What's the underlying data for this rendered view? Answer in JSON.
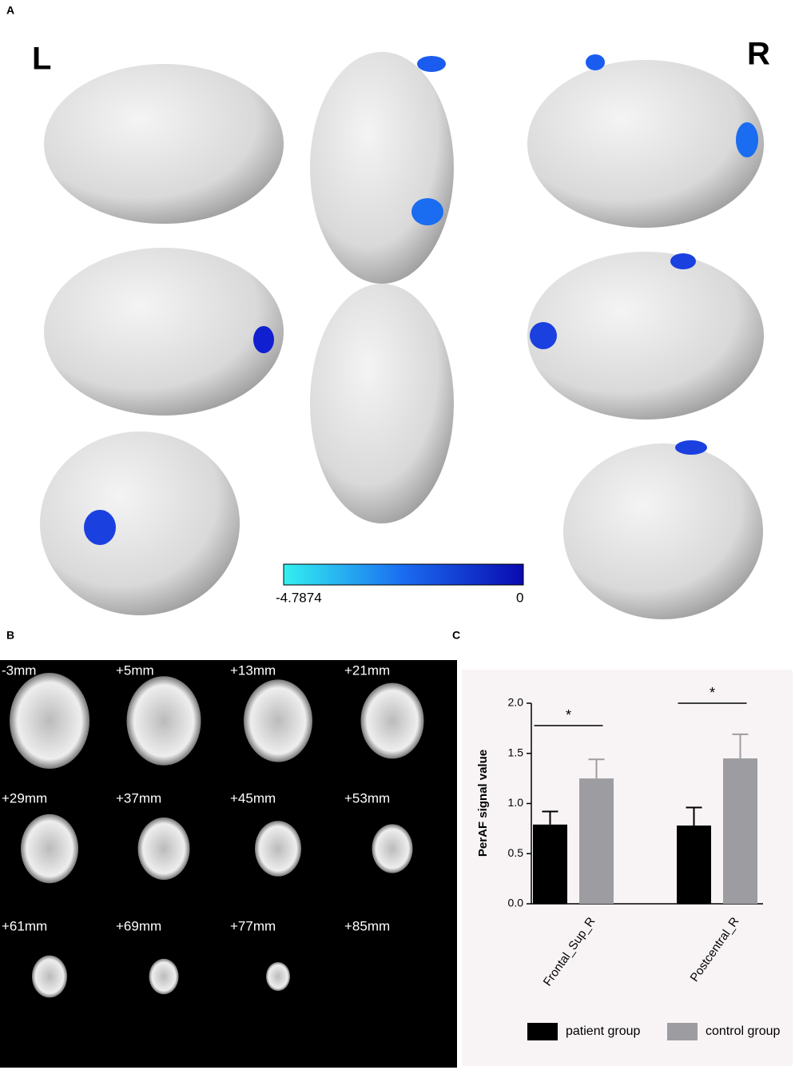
{
  "panels": [
    "A",
    "B",
    "C"
  ],
  "hemispheres": [
    "L",
    "R"
  ],
  "colorbar": {
    "min": -4.7874,
    "max": 0
  },
  "slices": [
    "-3mm",
    "+5mm",
    "+13mm",
    "+21mm",
    "+29mm",
    "+37mm",
    "+45mm",
    "+53mm",
    "+61mm",
    "+69mm",
    "+77mm",
    "+85mm"
  ],
  "chart_data": {
    "type": "bar",
    "ylabel": "PerAF signal value",
    "categories": [
      "Frontal_Sup_R",
      "Postcentral_R"
    ],
    "series": [
      {
        "name": "patient group",
        "color": "#000000",
        "values": [
          0.79,
          0.78
        ],
        "errors": [
          0.13,
          0.18
        ]
      },
      {
        "name": "control group",
        "color": "#9d9da1",
        "values": [
          1.25,
          1.45
        ],
        "errors": [
          0.19,
          0.24
        ]
      }
    ],
    "annotations": [
      "*",
      "*"
    ],
    "ylim": [
      0,
      2
    ],
    "yticks": [
      {
        "value": 0,
        "label": "0.0"
      },
      {
        "value": 0.5,
        "label": "0.5"
      },
      {
        "value": 1,
        "label": "1.0"
      },
      {
        "value": 1.5,
        "label": "1.5"
      },
      {
        "value": 2,
        "label": "2.0"
      }
    ]
  }
}
